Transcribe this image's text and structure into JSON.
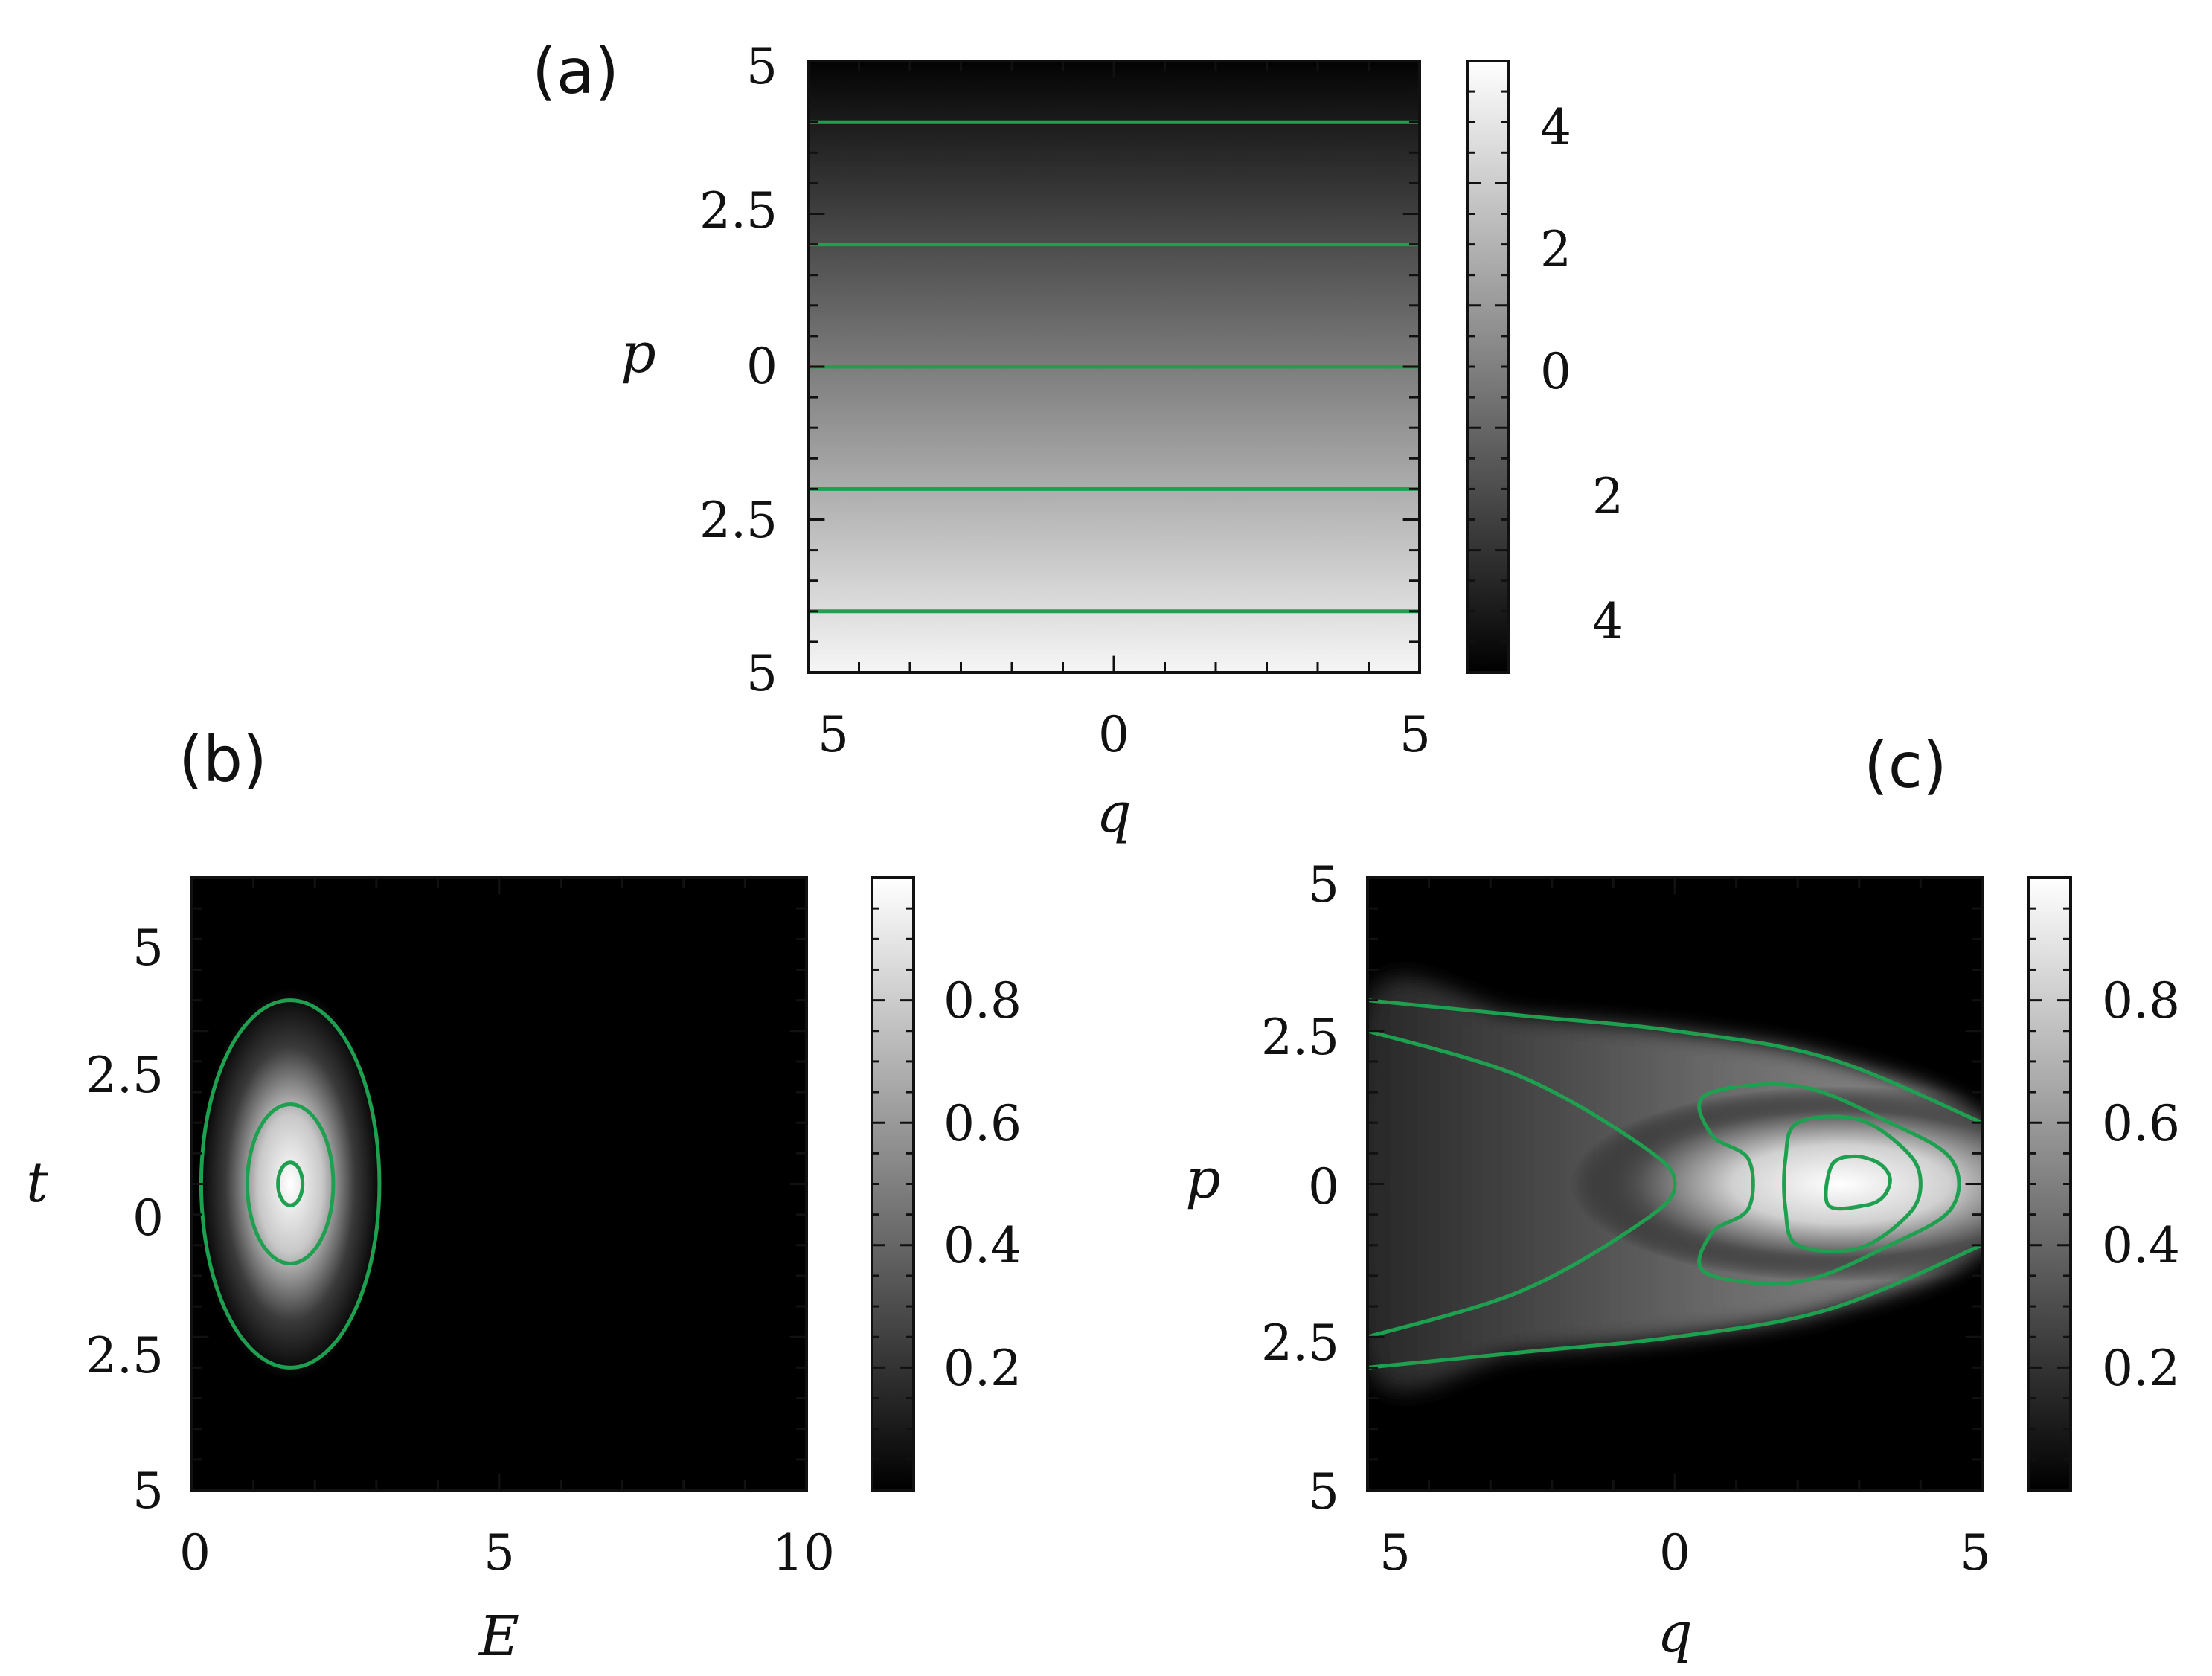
{
  "colors": {
    "contour": "#1fa050",
    "map_low": "#000000",
    "map_high": "#ffffff"
  },
  "chart_data": [
    {
      "panel_label": "(a)",
      "type": "heatmap",
      "xlabel": "q",
      "ylabel": "p",
      "x_ticks": [
        "5",
        "0",
        "5"
      ],
      "y_ticks": [
        "5",
        "2.5",
        "0",
        "2.5",
        "5"
      ],
      "colorbar_ticks": [
        "4",
        "2",
        "0",
        "2",
        "4"
      ],
      "colorbar_range": [
        -5,
        5
      ],
      "xlim": [
        -5,
        5
      ],
      "ylim": [
        -5,
        5
      ],
      "field": "linear in p, constant in q: dark at p = 5, light at p = -5",
      "contour_levels_p": [
        4,
        2,
        0,
        -2,
        -4
      ]
    },
    {
      "panel_label": "(b)",
      "type": "heatmap",
      "xlabel": "E",
      "ylabel": "t",
      "x_ticks": [
        "0",
        "5",
        "10"
      ],
      "y_ticks": [
        "5",
        "2.5",
        "0",
        "2.5",
        "5"
      ],
      "colorbar_ticks": [
        "0.8",
        "0.6",
        "0.4",
        "0.2"
      ],
      "colorbar_range": [
        0,
        1
      ],
      "xlim": [
        0,
        10
      ],
      "ylim": [
        -5,
        5
      ],
      "peak": {
        "E": 1.6,
        "t": 0,
        "value": 1
      },
      "contours": [
        {
          "center": [
            1.6,
            0
          ],
          "half_width_E": 1.45,
          "half_height_t": 3.0
        },
        {
          "center": [
            1.6,
            0
          ],
          "half_width_E": 0.7,
          "half_height_t": 1.3
        },
        {
          "center": [
            1.6,
            0
          ],
          "half_width_E": 0.2,
          "half_height_t": 0.35
        }
      ]
    },
    {
      "panel_label": "(c)",
      "type": "heatmap",
      "xlabel": "q",
      "ylabel": "p",
      "x_ticks": [
        "5",
        "0",
        "5"
      ],
      "y_ticks": [
        "5",
        "2.5",
        "0",
        "2.5",
        "5"
      ],
      "colorbar_ticks": [
        "0.8",
        "0.6",
        "0.4",
        "0.2"
      ],
      "colorbar_range": [
        0,
        1
      ],
      "xlim": [
        -5,
        5
      ],
      "ylim": [
        -5,
        5
      ],
      "peak": {
        "q": 2.7,
        "p": 0,
        "value": 1
      },
      "contours": [
        {
          "outer": [
            [
              -5,
              3.0
            ],
            [
              -2.5,
              2.75
            ],
            [
              0,
              2.5
            ],
            [
              2.5,
              2.05
            ],
            [
              5,
              1.0
            ]
          ],
          "inner": [
            [
              -5,
              2.5
            ],
            [
              -2.5,
              1.75
            ],
            [
              -0.5,
              0.6
            ],
            [
              0,
              0
            ]
          ]
        },
        {
          "points": [
            [
              0.5,
              -1.45
            ],
            [
              0.6,
              -0.8
            ],
            [
              1.2,
              -0.4
            ],
            [
              1.2,
              0.4
            ],
            [
              0.6,
              0.8
            ],
            [
              0.5,
              1.45
            ],
            [
              2,
              1.6
            ],
            [
              3.5,
              1.0
            ],
            [
              4.5,
              0.4
            ],
            [
              4.5,
              -0.4
            ],
            [
              3.5,
              -1.0
            ],
            [
              2,
              -1.6
            ]
          ]
        },
        {
          "points": [
            [
              2.0,
              -1.0
            ],
            [
              1.8,
              -0.4
            ],
            [
              1.8,
              0.4
            ],
            [
              2.0,
              1.0
            ],
            [
              3.0,
              1.05
            ],
            [
              3.8,
              0.5
            ],
            [
              4.0,
              0
            ],
            [
              3.8,
              -0.5
            ],
            [
              3.0,
              -1.05
            ]
          ]
        },
        {
          "points": [
            [
              2.5,
              -0.35
            ],
            [
              2.55,
              0.3
            ],
            [
              2.9,
              0.45
            ],
            [
              3.3,
              0.35
            ],
            [
              3.5,
              0.1
            ],
            [
              3.4,
              -0.2
            ],
            [
              3.1,
              -0.35
            ]
          ]
        }
      ]
    }
  ]
}
